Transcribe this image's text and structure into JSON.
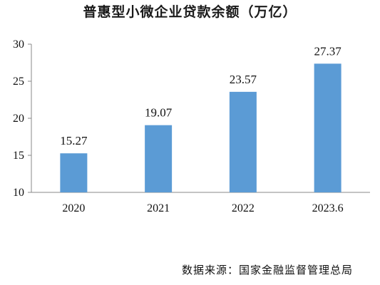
{
  "chart_data": {
    "type": "bar",
    "title": "普惠型小微企业贷款余额（万亿）",
    "categories": [
      "2020",
      "2021",
      "2022",
      "2023.6"
    ],
    "values": [
      15.27,
      19.07,
      23.57,
      27.37
    ],
    "data_labels": [
      "15.27",
      "19.07",
      "23.57",
      "27.37"
    ],
    "ylim": [
      10,
      30
    ],
    "yticks": [
      "10",
      "15",
      "20",
      "25",
      "30"
    ],
    "xlabel": "",
    "ylabel": "",
    "grid": false,
    "legend": "none",
    "bar_color": "#5b9bd5"
  },
  "source": "数据来源：国家金融监督管理总局"
}
